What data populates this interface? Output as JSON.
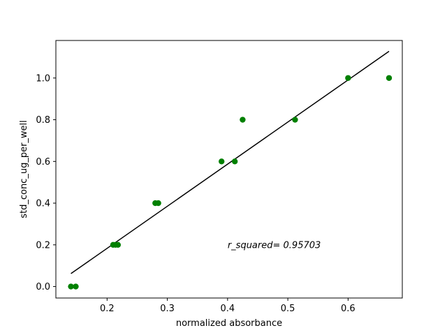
{
  "chart_data": {
    "type": "scatter",
    "title": "",
    "xlabel": "normalized absorbance",
    "ylabel": "std_conc_ug_per_well",
    "xlim": [
      0.115,
      0.69
    ],
    "ylim": [
      -0.055,
      1.18
    ],
    "xticks": [
      0.2,
      0.3,
      0.4,
      0.5,
      0.6
    ],
    "xtick_labels": [
      "0.2",
      "0.3",
      "0.4",
      "0.5",
      "0.6"
    ],
    "yticks": [
      0.0,
      0.2,
      0.4,
      0.6,
      0.8,
      1.0
    ],
    "ytick_labels": [
      "0.0",
      "0.2",
      "0.4",
      "0.6",
      "0.8",
      "1.0"
    ],
    "grid": false,
    "series": [
      {
        "kind": "scatter",
        "color": "#008000",
        "x": [
          0.14,
          0.148,
          0.21,
          0.214,
          0.218,
          0.28,
          0.285,
          0.39,
          0.412,
          0.425,
          0.512,
          0.6,
          0.668
        ],
        "y": [
          0.0,
          0.0,
          0.2,
          0.2,
          0.2,
          0.4,
          0.4,
          0.6,
          0.6,
          0.8,
          0.8,
          1.0,
          1.0
        ]
      },
      {
        "kind": "line",
        "color": "#000000",
        "x": [
          0.14,
          0.668
        ],
        "y": [
          0.062,
          1.128
        ]
      }
    ],
    "annotation": {
      "text": "r_squared= 0.95703",
      "x": 0.4,
      "y": 0.2
    }
  }
}
